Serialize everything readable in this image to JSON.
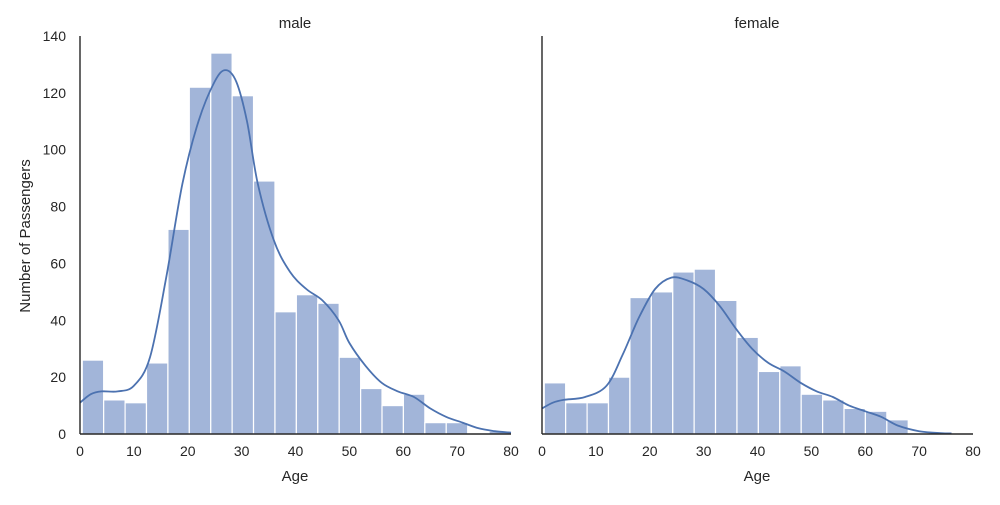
{
  "chart_data": {
    "type": "bar",
    "ylabel": "Number of Passengers",
    "ylim": [
      0,
      140
    ],
    "yticks": [
      0,
      20,
      40,
      60,
      80,
      100,
      120,
      140
    ],
    "xlim": [
      0,
      80
    ],
    "xticks": [
      0,
      10,
      20,
      30,
      40,
      50,
      60,
      70,
      80
    ],
    "bar_color": "#a2b5d9",
    "kde_color": "#4c72b0",
    "grid": false,
    "panels": [
      {
        "title": "male",
        "xlabel": "Age",
        "bin_edges": [
          0.42,
          4.39,
          8.37,
          12.34,
          16.32,
          20.29,
          24.27,
          28.24,
          32.21,
          36.19,
          40.16,
          44.14,
          48.11,
          52.09,
          56.06,
          60.03,
          64.01,
          67.98,
          71.96,
          75.93,
          79.91
        ],
        "values": [
          26,
          12,
          11,
          25,
          72,
          122,
          134,
          119,
          89,
          43,
          49,
          46,
          27,
          16,
          10,
          14,
          4,
          4,
          0,
          1
        ],
        "kde": [
          [
            0,
            11
          ],
          [
            2,
            14
          ],
          [
            4,
            15
          ],
          [
            7,
            15
          ],
          [
            10,
            17
          ],
          [
            13,
            27
          ],
          [
            16,
            55
          ],
          [
            19,
            88
          ],
          [
            22,
            110
          ],
          [
            25,
            124
          ],
          [
            27,
            128
          ],
          [
            29,
            124
          ],
          [
            31,
            110
          ],
          [
            33,
            88
          ],
          [
            36,
            68
          ],
          [
            39,
            57
          ],
          [
            42,
            51
          ],
          [
            45,
            47
          ],
          [
            48,
            40
          ],
          [
            50,
            32
          ],
          [
            53,
            24
          ],
          [
            56,
            18
          ],
          [
            59,
            15
          ],
          [
            62,
            13
          ],
          [
            65,
            9
          ],
          [
            68,
            6
          ],
          [
            71,
            4
          ],
          [
            74,
            2
          ],
          [
            77,
            1
          ],
          [
            80,
            0.5
          ]
        ]
      },
      {
        "title": "female",
        "xlabel": "Age",
        "bin_edges": [
          0.42,
          4.39,
          8.37,
          12.34,
          16.32,
          20.29,
          24.27,
          28.24,
          32.21,
          36.19,
          40.16,
          44.14,
          48.11,
          52.09,
          56.06,
          60.03,
          64.01,
          67.98,
          71.96,
          75.93
        ],
        "values": [
          18,
          11,
          11,
          20,
          48,
          50,
          57,
          58,
          47,
          34,
          22,
          24,
          14,
          12,
          9,
          8,
          5,
          0,
          0
        ],
        "kde": [
          [
            0,
            9
          ],
          [
            2,
            11
          ],
          [
            4,
            12
          ],
          [
            8,
            13
          ],
          [
            12,
            17
          ],
          [
            15,
            28
          ],
          [
            18,
            41
          ],
          [
            21,
            51
          ],
          [
            24,
            55
          ],
          [
            27,
            54
          ],
          [
            30,
            51
          ],
          [
            33,
            45
          ],
          [
            36,
            37
          ],
          [
            39,
            30
          ],
          [
            42,
            25
          ],
          [
            45,
            22
          ],
          [
            48,
            18
          ],
          [
            51,
            15
          ],
          [
            54,
            13
          ],
          [
            57,
            10
          ],
          [
            60,
            8
          ],
          [
            63,
            6
          ],
          [
            66,
            3
          ],
          [
            70,
            1
          ],
          [
            74,
            0.3
          ],
          [
            76,
            0.2
          ]
        ]
      }
    ]
  }
}
